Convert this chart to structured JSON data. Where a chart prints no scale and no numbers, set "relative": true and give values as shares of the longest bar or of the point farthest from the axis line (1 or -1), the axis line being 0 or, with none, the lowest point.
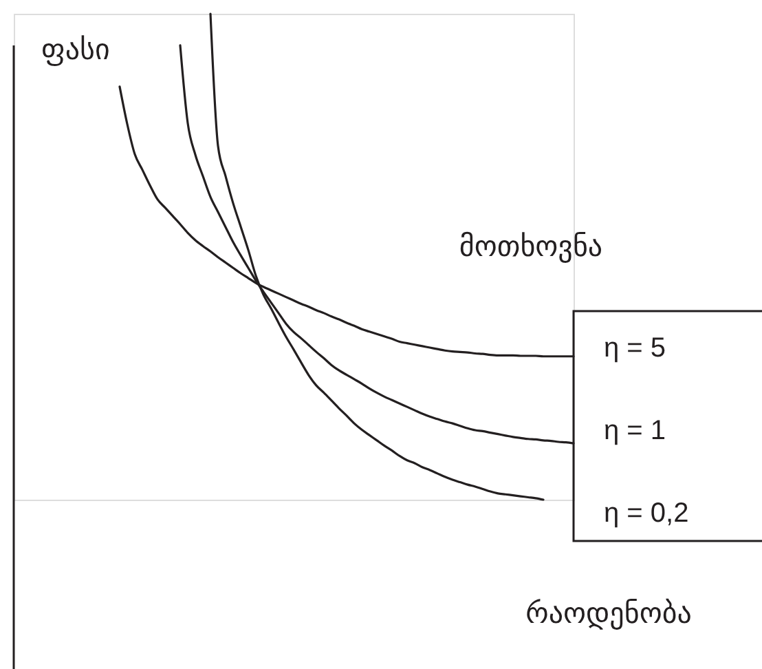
{
  "chart_data": {
    "type": "line",
    "relative": true,
    "ylabel": "ფასი",
    "xlabel": "რაოდენობა",
    "annotations": [
      "მოთხოვნა"
    ],
    "categories": [
      null,
      null,
      null,
      null,
      null,
      null,
      null,
      null,
      null,
      null,
      null,
      null,
      null,
      null,
      null,
      null,
      null,
      null,
      null,
      null,
      null,
      null,
      null,
      null,
      null,
      null,
      null,
      null,
      null,
      null,
      null,
      null,
      null,
      null,
      null,
      null,
      null,
      null,
      null,
      null,
      null,
      null,
      null,
      null,
      null,
      null,
      null,
      null,
      null,
      null,
      null,
      null,
      null,
      null,
      null,
      null,
      null,
      null,
      null,
      null,
      null
    ],
    "series": [
      {
        "name": "η = 5",
        "color": "#231f20",
        "values": [
          0.85,
          0.773,
          0.711,
          0.679,
          0.647,
          0.618,
          0.601,
          0.584,
          0.567,
          0.549,
          0.534,
          0.522,
          0.511,
          0.499,
          0.488,
          0.477,
          0.466,
          0.456,
          0.446,
          0.438,
          0.431,
          0.424,
          0.417,
          0.41,
          0.403,
          0.397,
          0.39,
          0.384,
          0.377,
          0.371,
          0.364,
          0.358,
          0.351,
          0.346,
          0.341,
          0.336,
          0.331,
          0.325,
          0.322,
          0.319,
          0.316,
          0.313,
          0.31,
          0.307,
          0.305,
          0.304,
          0.303,
          0.301,
          0.3,
          0.298,
          0.297,
          0.297,
          0.297,
          0.296,
          0.296,
          0.296,
          0.295,
          0.295,
          0.295,
          0.295,
          0.295
        ]
      },
      {
        "name": "η = 1",
        "color": "#231f20",
        "values": [
          null,
          null,
          null,
          null,
          null,
          null,
          null,
          null,
          0.935,
          0.775,
          0.71,
          0.666,
          0.623,
          0.592,
          0.561,
          0.53,
          0.503,
          0.477,
          0.451,
          0.428,
          0.406,
          0.384,
          0.362,
          0.345,
          0.332,
          0.318,
          0.304,
          0.291,
          0.277,
          0.266,
          0.257,
          0.248,
          0.239,
          0.229,
          0.22,
          0.212,
          0.205,
          0.198,
          0.191,
          0.184,
          0.177,
          0.171,
          0.166,
          0.161,
          0.157,
          0.152,
          0.147,
          0.143,
          0.141,
          0.138,
          0.135,
          0.132,
          0.129,
          0.127,
          0.125,
          0.124,
          0.122,
          0.121,
          0.119,
          0.118,
          0.116
        ]
      },
      {
        "name": "η = 0,2",
        "color": "#231f20",
        "values": [
          null,
          null,
          null,
          null,
          null,
          null,
          null,
          null,
          null,
          null,
          null,
          null,
          1.0,
          0.728,
          0.666,
          0.61,
          0.562,
          0.514,
          0.461,
          0.422,
          0.394,
          0.364,
          0.335,
          0.309,
          0.282,
          0.256,
          0.235,
          0.22,
          0.204,
          0.188,
          0.173,
          0.157,
          0.144,
          0.133,
          0.122,
          0.111,
          0.101,
          0.09,
          0.081,
          0.075,
          0.067,
          0.061,
          0.054,
          0.047,
          0.041,
          0.036,
          0.031,
          0.027,
          0.022,
          0.017,
          0.013,
          0.011,
          0.009,
          0.007,
          0.005,
          0.003,
          0,
          null,
          null,
          null,
          null
        ]
      }
    ]
  }
}
